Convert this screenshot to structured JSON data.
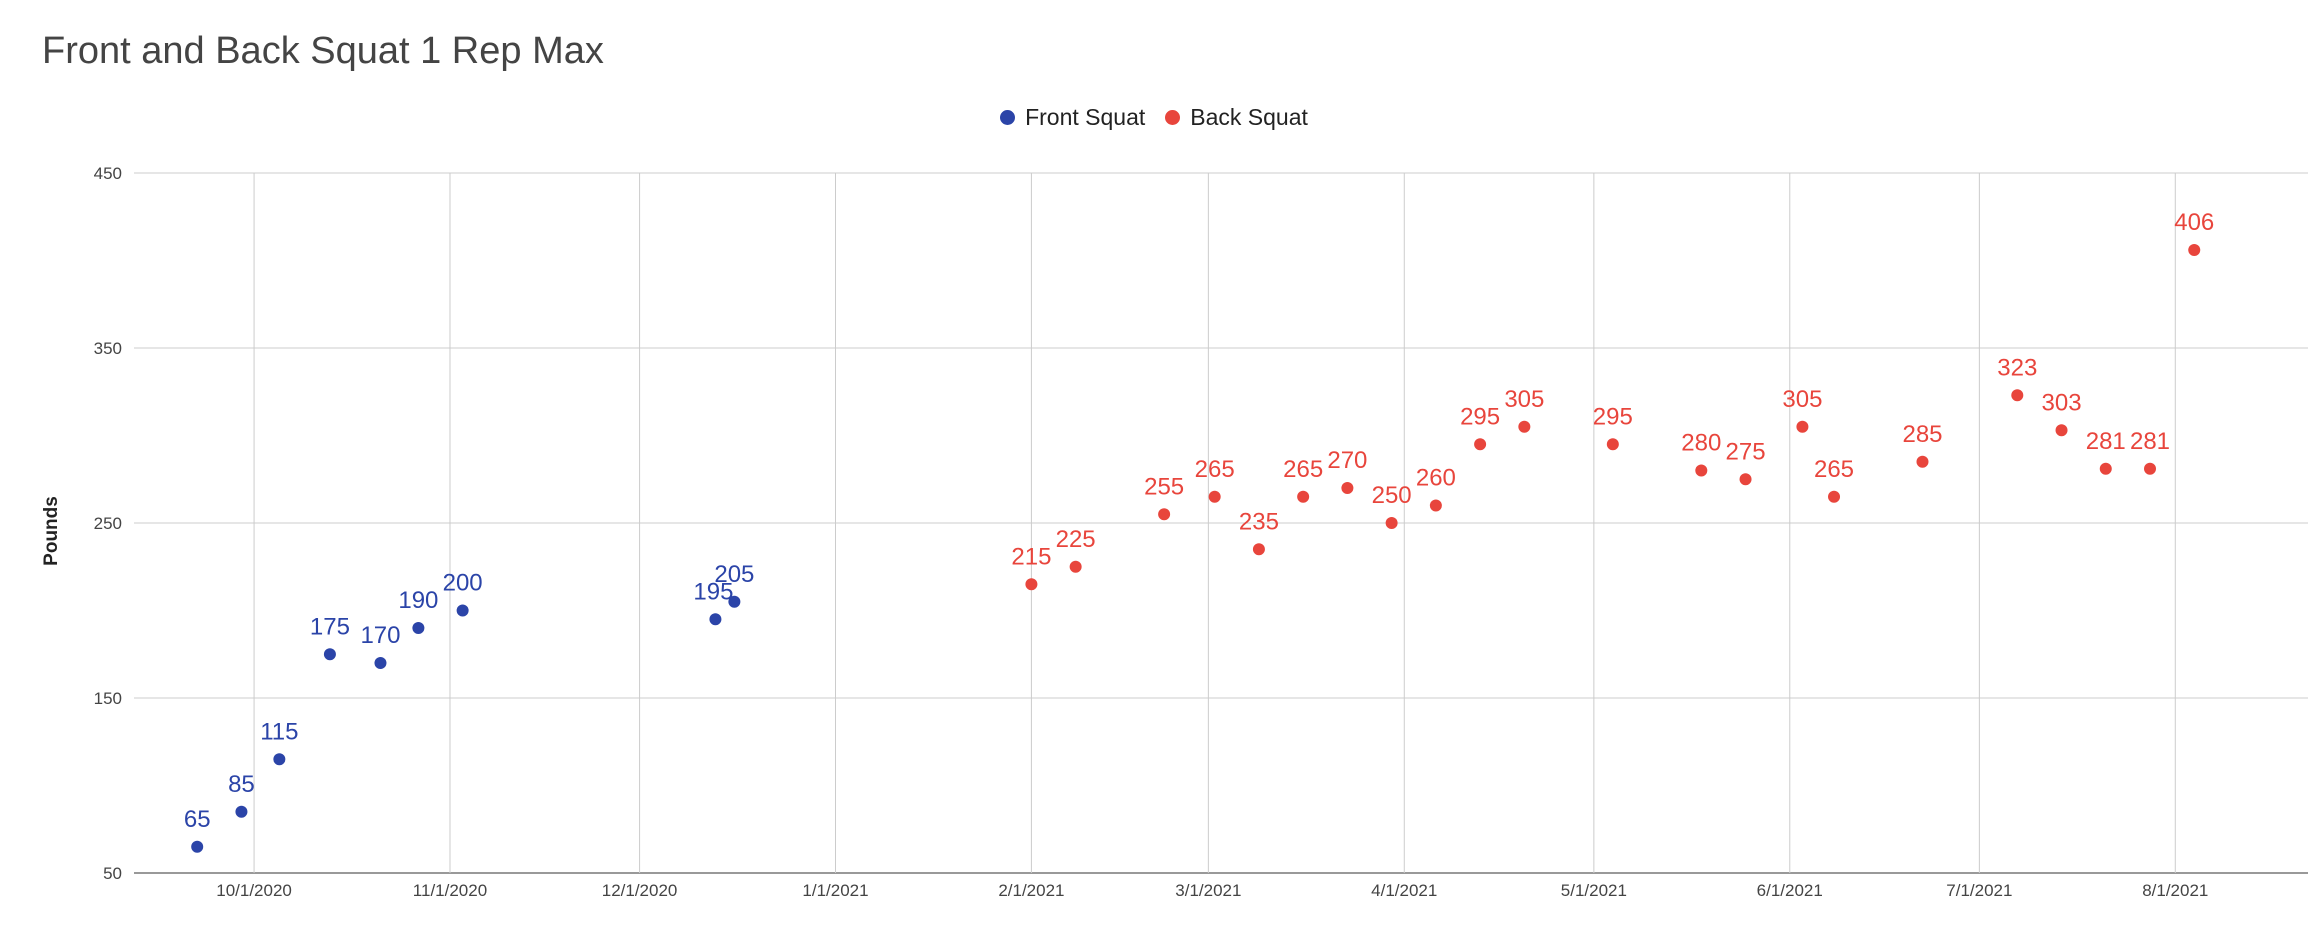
{
  "chart_data": {
    "type": "scatter",
    "title": "Front and Back Squat 1 Rep Max",
    "xlabel": "",
    "ylabel": "Pounds",
    "ylim": [
      50,
      450
    ],
    "yticks": [
      50,
      150,
      250,
      350,
      450
    ],
    "xlim": [
      "2020-09-12",
      "2021-08-22"
    ],
    "xticks": [
      {
        "date": "2020-10-01",
        "label": "10/1/2020"
      },
      {
        "date": "2020-11-01",
        "label": "11/1/2020"
      },
      {
        "date": "2020-12-01",
        "label": "12/1/2020"
      },
      {
        "date": "2021-01-01",
        "label": "1/1/2021"
      },
      {
        "date": "2021-02-01",
        "label": "2/1/2021"
      },
      {
        "date": "2021-03-01",
        "label": "3/1/2021"
      },
      {
        "date": "2021-04-01",
        "label": "4/1/2021"
      },
      {
        "date": "2021-05-01",
        "label": "5/1/2021"
      },
      {
        "date": "2021-06-01",
        "label": "6/1/2021"
      },
      {
        "date": "2021-07-01",
        "label": "7/1/2021"
      },
      {
        "date": "2021-08-01",
        "label": "8/1/2021"
      }
    ],
    "grid": true,
    "legend_position": "top-center",
    "series": [
      {
        "name": "Front Squat",
        "color": "#2b44a8",
        "points": [
          {
            "x": "2020-09-22",
            "y": 65
          },
          {
            "x": "2020-09-29",
            "y": 85
          },
          {
            "x": "2020-10-05",
            "y": 115
          },
          {
            "x": "2020-10-13",
            "y": 175
          },
          {
            "x": "2020-10-21",
            "y": 170
          },
          {
            "x": "2020-10-27",
            "y": 190
          },
          {
            "x": "2020-11-03",
            "y": 200
          },
          {
            "x": "2020-12-13",
            "y": 195
          },
          {
            "x": "2020-12-16",
            "y": 205
          }
        ]
      },
      {
        "name": "Back Squat",
        "color": "#e8453c",
        "points": [
          {
            "x": "2021-02-01",
            "y": 215
          },
          {
            "x": "2021-02-08",
            "y": 225
          },
          {
            "x": "2021-02-22",
            "y": 255
          },
          {
            "x": "2021-03-02",
            "y": 265
          },
          {
            "x": "2021-03-09",
            "y": 235
          },
          {
            "x": "2021-03-16",
            "y": 265
          },
          {
            "x": "2021-03-23",
            "y": 270
          },
          {
            "x": "2021-03-30",
            "y": 250
          },
          {
            "x": "2021-04-06",
            "y": 260
          },
          {
            "x": "2021-04-13",
            "y": 295
          },
          {
            "x": "2021-04-20",
            "y": 305
          },
          {
            "x": "2021-05-04",
            "y": 295
          },
          {
            "x": "2021-05-18",
            "y": 280
          },
          {
            "x": "2021-05-25",
            "y": 275
          },
          {
            "x": "2021-06-03",
            "y": 305
          },
          {
            "x": "2021-06-08",
            "y": 265
          },
          {
            "x": "2021-06-22",
            "y": 285
          },
          {
            "x": "2021-07-07",
            "y": 323
          },
          {
            "x": "2021-07-14",
            "y": 303
          },
          {
            "x": "2021-07-21",
            "y": 281
          },
          {
            "x": "2021-07-28",
            "y": 281
          },
          {
            "x": "2021-08-04",
            "y": 406
          }
        ]
      }
    ]
  }
}
